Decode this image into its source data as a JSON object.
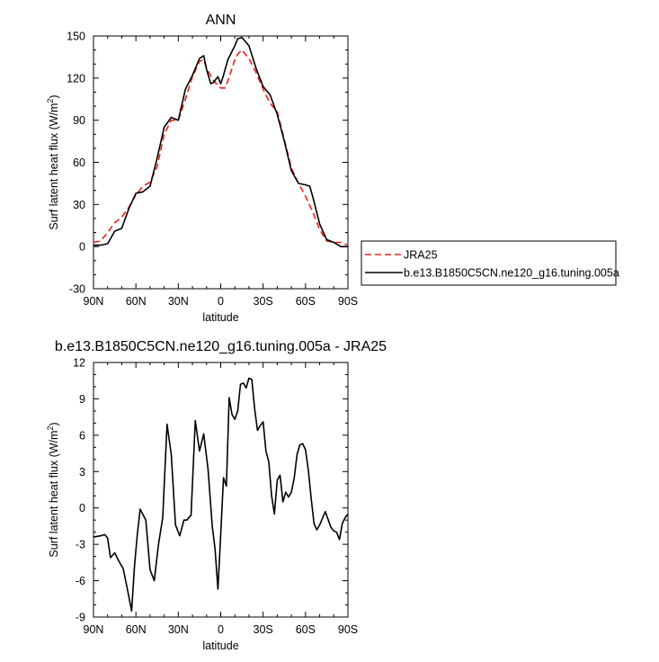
{
  "chart_data": [
    {
      "type": "line",
      "title": "ANN",
      "xlabel": "latitude",
      "ylabel": "Surf latent heat flux (W/m",
      "ylabel_sup": "2",
      "ylabel_close": ")",
      "xlim": [
        90,
        -90
      ],
      "ylim": [
        -30,
        150
      ],
      "yticks": [
        -30,
        0,
        30,
        60,
        90,
        120,
        150
      ],
      "xtick_values": [
        90,
        60,
        30,
        0,
        -30,
        -60,
        -90
      ],
      "xtick_labels": [
        "90N",
        "60N",
        "30N",
        "0",
        "30S",
        "60S",
        "90S"
      ],
      "grid": false,
      "legend": "right",
      "series": [
        {
          "name": "JRA25",
          "color": "#e8201c",
          "dash": "dashed",
          "x": [
            90,
            85,
            80,
            75,
            70,
            65,
            60,
            55,
            50,
            45,
            40,
            35,
            30,
            25,
            20,
            15,
            12,
            10,
            5,
            0,
            -3,
            -5,
            -10,
            -12,
            -15,
            -20,
            -25,
            -30,
            -35,
            -40,
            -45,
            -50,
            -55,
            -60,
            -65,
            -70,
            -75,
            -80,
            -85,
            -90
          ],
          "values": [
            3,
            4,
            10,
            17,
            21,
            28,
            37,
            43,
            46,
            57,
            80,
            90,
            90,
            105,
            121,
            132,
            133,
            127,
            118,
            113,
            113,
            118,
            133,
            137,
            140,
            134,
            124,
            112,
            102,
            96,
            76,
            56,
            45,
            36,
            25,
            12,
            4,
            3,
            3,
            1
          ]
        },
        {
          "name": "b.e13.B1850C5CN.ne120_g16.tuning.005a",
          "color": "#000000",
          "dash": "solid",
          "x": [
            90,
            85,
            80,
            75,
            70,
            65,
            60,
            55,
            50,
            45,
            40,
            35,
            30,
            25,
            20,
            15,
            12,
            10,
            7,
            5,
            2,
            0,
            -2,
            -5,
            -10,
            -12,
            -15,
            -20,
            -25,
            -30,
            -35,
            -40,
            -45,
            -50,
            -55,
            -60,
            -63,
            -65,
            -70,
            -75,
            -80,
            -85,
            -90
          ],
          "values": [
            1,
            1,
            2,
            11,
            13,
            27,
            38,
            39,
            43,
            63,
            85,
            92,
            90,
            112,
            122,
            134,
            136,
            126,
            116,
            117,
            121,
            116,
            122,
            133,
            143,
            148,
            149,
            143,
            127,
            114,
            108,
            94,
            75,
            54,
            45,
            44,
            43,
            36,
            16,
            5,
            3,
            0,
            0
          ]
        }
      ]
    },
    {
      "type": "line",
      "title": "b.e13.B1850C5CN.ne120_g16.tuning.005a - JRA25",
      "xlabel": "latitude",
      "ylabel": "Surf latent heat flux (W/m",
      "ylabel_sup": "2",
      "ylabel_close": ")",
      "xlim": [
        90,
        -90
      ],
      "ylim": [
        -9,
        12
      ],
      "yticks": [
        -9,
        -6,
        -3,
        0,
        3,
        6,
        9,
        12
      ],
      "xtick_values": [
        90,
        60,
        30,
        0,
        -30,
        -60,
        -90
      ],
      "xtick_labels": [
        "90N",
        "60N",
        "30N",
        "0",
        "30S",
        "60S",
        "90S"
      ],
      "grid": false,
      "series": [
        {
          "color": "#000000",
          "dash": "solid",
          "x": [
            90,
            85,
            82,
            80,
            78,
            75,
            72,
            69,
            66,
            63,
            61,
            59,
            57,
            53,
            50,
            47,
            44,
            41,
            38,
            35,
            32,
            29,
            26,
            24,
            21,
            18,
            15,
            12,
            9,
            6,
            4,
            2,
            0,
            -2,
            -4,
            -6,
            -8,
            -10,
            -12,
            -14,
            -16,
            -18,
            -20,
            -22,
            -24,
            -26,
            -28,
            -30,
            -32,
            -34,
            -36,
            -38,
            -40,
            -42,
            -44,
            -46,
            -48,
            -50,
            -52,
            -54,
            -56,
            -58,
            -60,
            -62,
            -64,
            -66,
            -68,
            -70,
            -74,
            -78,
            -80,
            -82,
            -84,
            -86,
            -88,
            -90
          ],
          "values": [
            -2.4,
            -2.3,
            -2.2,
            -2.5,
            -4.1,
            -3.7,
            -4.4,
            -5.0,
            -6.7,
            -8.5,
            -4.8,
            -2.2,
            -0.1,
            -1.0,
            -5.1,
            -6.0,
            -3.0,
            -0.8,
            6.9,
            4.4,
            -1.4,
            -2.3,
            -1.0,
            -1.0,
            -0.6,
            7.2,
            4.7,
            6.1,
            3.2,
            -1.5,
            -3.4,
            -6.7,
            -2.2,
            2.5,
            1.8,
            9.1,
            7.7,
            7.3,
            8.0,
            10.2,
            10.3,
            9.9,
            10.7,
            10.6,
            8.2,
            6.4,
            6.8,
            7.1,
            4.7,
            3.8,
            1.0,
            -0.5,
            2.3,
            2.7,
            0.5,
            1.3,
            0.9,
            1.3,
            2.5,
            4.4,
            5.2,
            5.3,
            4.8,
            3.1,
            0.8,
            -1.3,
            -1.8,
            -1.4,
            -0.3,
            -1.6,
            -1.9,
            -2.0,
            -2.6,
            -1.3,
            -0.8,
            -0.5
          ]
        }
      ]
    }
  ]
}
